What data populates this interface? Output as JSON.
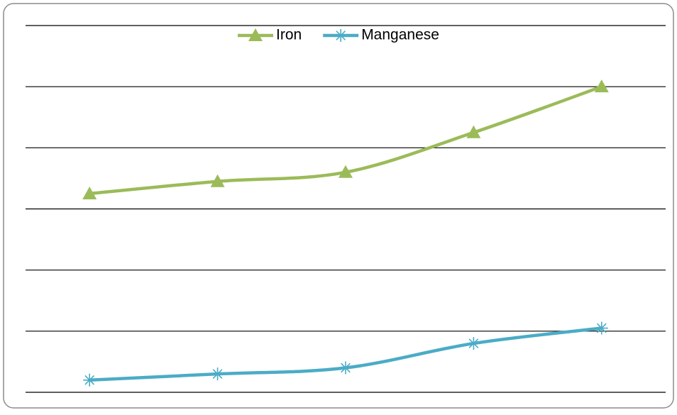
{
  "chart_data": {
    "type": "line",
    "categories": [
      null,
      null,
      null,
      null,
      null
    ],
    "series": [
      {
        "name": "Iron",
        "color": "#9bbb59",
        "marker": "triangle",
        "values": [
          3.25,
          3.45,
          3.6,
          4.25,
          5.0
        ]
      },
      {
        "name": "Manganese",
        "color": "#4bacc6",
        "marker": "asterisk",
        "values": [
          0.2,
          0.3,
          0.4,
          0.8,
          1.05
        ]
      }
    ],
    "ylim": [
      0,
      6
    ],
    "yticks": [
      0,
      1,
      2,
      3,
      4,
      5,
      6
    ],
    "grid": true,
    "legend": "top"
  }
}
